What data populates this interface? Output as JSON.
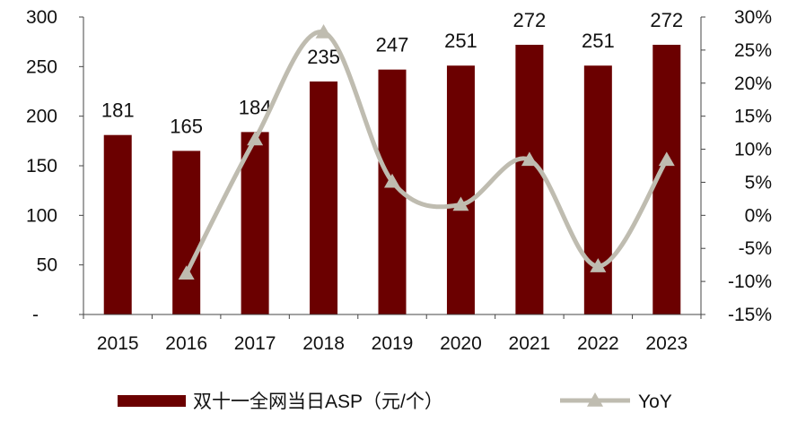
{
  "chart_data": {
    "type": "bar+line",
    "categories": [
      "2015",
      "2016",
      "2017",
      "2018",
      "2019",
      "2020",
      "2021",
      "2022",
      "2023"
    ],
    "series": [
      {
        "name": "双十一全网当日ASP（元/个）",
        "type": "bar",
        "axis": "left",
        "color": "#6b0000",
        "values": [
          181,
          165,
          184,
          235,
          247,
          251,
          272,
          251,
          272
        ],
        "data_labels": [
          "181",
          "165",
          "184",
          "235",
          "247",
          "251",
          "272",
          "251",
          "272"
        ]
      },
      {
        "name": "YoY",
        "type": "line",
        "axis": "right",
        "color": "#bfbcb0",
        "marker": "triangle",
        "values": [
          null,
          -8.8,
          11.5,
          27.7,
          5.1,
          1.6,
          8.4,
          -7.7,
          8.4
        ]
      }
    ],
    "y_left": {
      "min": 0,
      "max": 300,
      "step": 50,
      "tick_labels": [
        "-",
        "50",
        "100",
        "150",
        "200",
        "250",
        "300"
      ]
    },
    "y_right": {
      "min": -15,
      "max": 30,
      "step": 5,
      "tick_labels": [
        "-15%",
        "-10%",
        "-5%",
        "0%",
        "5%",
        "10%",
        "15%",
        "20%",
        "25%",
        "30%"
      ]
    },
    "grid": false,
    "legend": "bottom"
  }
}
